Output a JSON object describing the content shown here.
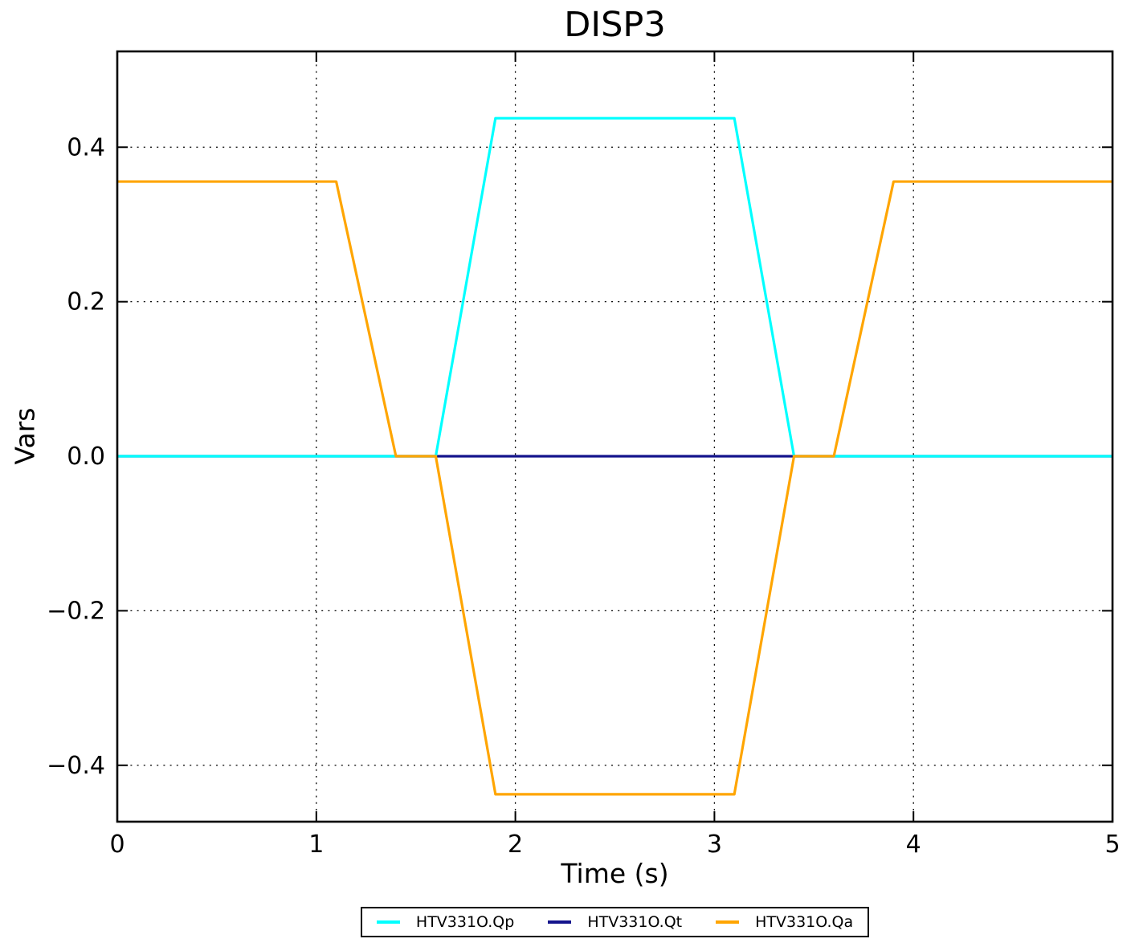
{
  "chart_data": {
    "type": "line",
    "title": "DISP3",
    "xlabel": "Time (s)",
    "ylabel": "Vars",
    "xlim": [
      0,
      5
    ],
    "ylim": [
      -0.473,
      0.524
    ],
    "grid": "dotted",
    "legend_position": "bottom-center",
    "xticks": {
      "values": [
        0,
        1,
        2,
        3,
        4,
        5
      ],
      "labels": [
        "0",
        "1",
        "2",
        "3",
        "4",
        "5"
      ]
    },
    "yticks": {
      "values": [
        -0.4,
        -0.2,
        0.0,
        0.2,
        0.4
      ],
      "labels": [
        "−0.4",
        "−0.2",
        "0.0",
        "0.2",
        "0.4"
      ]
    },
    "series": [
      {
        "name": "HTV331O.Qt",
        "color": "#14148c",
        "points": [
          [
            0,
            0
          ],
          [
            5,
            0
          ]
        ]
      },
      {
        "name": "HTV331O.Qp",
        "color": "#00ffff",
        "points": [
          [
            0,
            0
          ],
          [
            1.6,
            0
          ],
          [
            1.9,
            0.4375
          ],
          [
            3.1,
            0.4375
          ],
          [
            3.4,
            0
          ],
          [
            5,
            0
          ]
        ]
      },
      {
        "name": "HTV331O.Qa",
        "color": "#ffa500",
        "points": [
          [
            0,
            0.3555
          ],
          [
            1.1,
            0.3555
          ],
          [
            1.4,
            0
          ],
          [
            1.6,
            0
          ],
          [
            1.9,
            -0.4375
          ],
          [
            3.1,
            -0.4375
          ],
          [
            3.4,
            0
          ],
          [
            3.6,
            0
          ],
          [
            3.9,
            0.3555
          ],
          [
            5,
            0.3555
          ]
        ]
      }
    ],
    "legend": [
      {
        "label": "HTV331O.Qp",
        "color": "#00ffff"
      },
      {
        "label": "HTV331O.Qt",
        "color": "#14148c"
      },
      {
        "label": "HTV331O.Qa",
        "color": "#ffa500"
      }
    ]
  }
}
